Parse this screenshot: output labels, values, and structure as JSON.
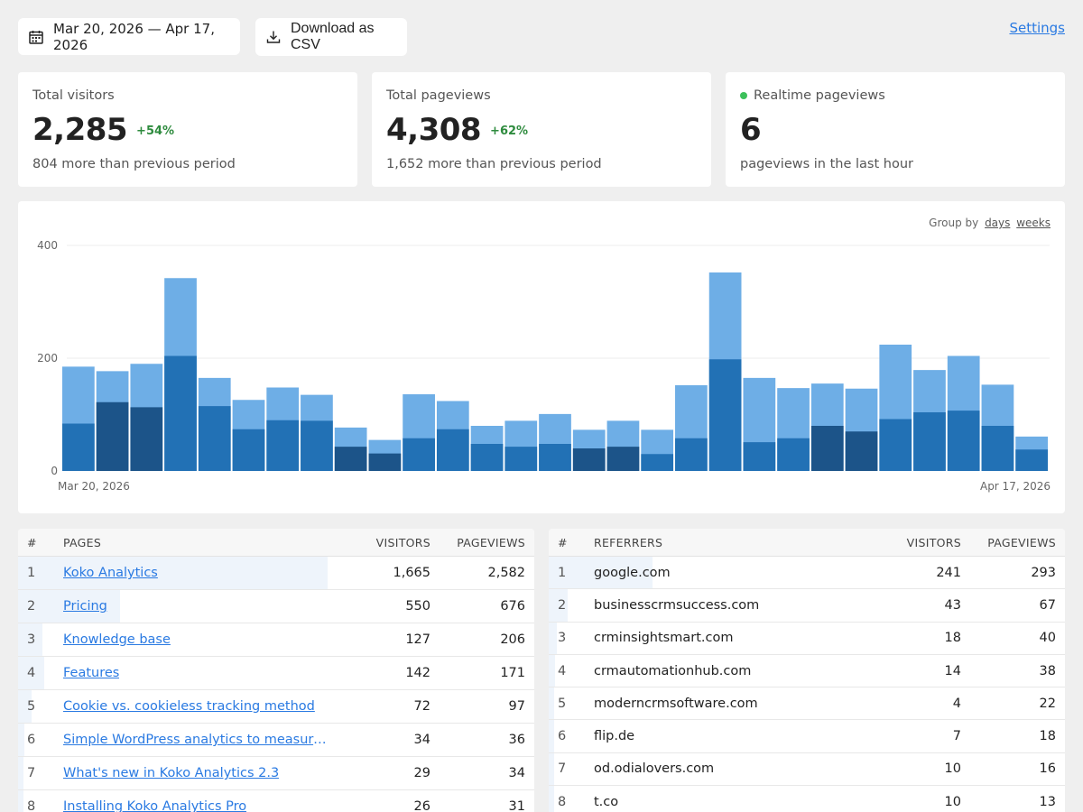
{
  "toolbar": {
    "date_range": "Mar 20, 2026 — Apr 17, 2026",
    "download_label": "Download as CSV",
    "settings_label": "Settings",
    "calendar_icon": "calendar-icon",
    "download_icon": "download-icon"
  },
  "cards": {
    "visitors": {
      "label": "Total visitors",
      "value": "2,285",
      "change": "+54%",
      "sub": "804 more than previous period"
    },
    "pageviews": {
      "label": "Total pageviews",
      "value": "4,308",
      "change": "+62%",
      "sub": "1,652 more than previous period"
    },
    "realtime": {
      "label": "Realtime pageviews",
      "value": "6",
      "sub": "pageviews in the last hour"
    }
  },
  "chart": {
    "group_by_label": "Group by",
    "group_days": "days",
    "group_weeks": "weeks",
    "x_start": "Mar 20, 2026",
    "x_end": "Apr 17, 2026"
  },
  "chart_data": {
    "type": "bar",
    "ylim": [
      0,
      400
    ],
    "yticks": [
      0,
      200,
      400
    ],
    "x_start": "Mar 20, 2026",
    "x_end": "Apr 17, 2026",
    "colors": {
      "pageviews": "#6eaee6",
      "visitors": "#2271b5",
      "visitors_weekend": "#1c5489"
    },
    "weekend_days": [
      1,
      2,
      8,
      9,
      15,
      16,
      22,
      23
    ],
    "series": [
      {
        "values": [
          185,
          177,
          190,
          342,
          165,
          126,
          148,
          135,
          77,
          55,
          136,
          124,
          80,
          89,
          101,
          73,
          89,
          73,
          152,
          352,
          165,
          147,
          155,
          146,
          224,
          179,
          204,
          153,
          61
        ]
      },
      {
        "values": [
          84,
          122,
          113,
          204,
          115,
          74,
          90,
          89,
          43,
          31,
          58,
          74,
          48,
          43,
          48,
          40,
          43,
          30,
          58,
          198,
          51,
          58,
          80,
          70,
          92,
          104,
          107,
          80,
          38
        ]
      }
    ]
  },
  "pages": {
    "headers": {
      "num": "#",
      "name": "PAGES",
      "visitors": "VISITORS",
      "pageviews": "PAGEVIEWS"
    },
    "rows": [
      {
        "num": "1",
        "name": "Koko Analytics",
        "visitors": "1,665",
        "pageviews": "2,582",
        "share": 1.0
      },
      {
        "num": "2",
        "name": "Pricing",
        "visitors": "550",
        "pageviews": "676",
        "share": 0.33
      },
      {
        "num": "3",
        "name": "Knowledge base",
        "visitors": "127",
        "pageviews": "206",
        "share": 0.08
      },
      {
        "num": "4",
        "name": "Features",
        "visitors": "142",
        "pageviews": "171",
        "share": 0.085
      },
      {
        "num": "5",
        "name": "Cookie vs. cookieless tracking method",
        "visitors": "72",
        "pageviews": "97",
        "share": 0.043
      },
      {
        "num": "6",
        "name": "Simple WordPress analytics to measure sit…",
        "visitors": "34",
        "pageviews": "36",
        "share": 0.02
      },
      {
        "num": "7",
        "name": "What's new in Koko Analytics 2.3",
        "visitors": "29",
        "pageviews": "34",
        "share": 0.017
      },
      {
        "num": "8",
        "name": "Installing Koko Analytics Pro",
        "visitors": "26",
        "pageviews": "31",
        "share": 0.016
      }
    ]
  },
  "referrers": {
    "headers": {
      "num": "#",
      "name": "REFERRERS",
      "visitors": "VISITORS",
      "pageviews": "PAGEVIEWS"
    },
    "rows": [
      {
        "num": "1",
        "name": "google.com",
        "visitors": "241",
        "pageviews": "293",
        "share": 1.0
      },
      {
        "num": "2",
        "name": "businesscrmsuccess.com",
        "visitors": "43",
        "pageviews": "67",
        "share": 0.18
      },
      {
        "num": "3",
        "name": "crminsightsmart.com",
        "visitors": "18",
        "pageviews": "40",
        "share": 0.075
      },
      {
        "num": "4",
        "name": "crmautomationhub.com",
        "visitors": "14",
        "pageviews": "38",
        "share": 0.058
      },
      {
        "num": "5",
        "name": "moderncrmsoftware.com",
        "visitors": "4",
        "pageviews": "22",
        "share": 0.017
      },
      {
        "num": "6",
        "name": "flip.de",
        "visitors": "7",
        "pageviews": "18",
        "share": 0.029
      },
      {
        "num": "7",
        "name": "od.odialovers.com",
        "visitors": "10",
        "pageviews": "16",
        "share": 0.041
      },
      {
        "num": "8",
        "name": "t.co",
        "visitors": "10",
        "pageviews": "13",
        "share": 0.041
      }
    ]
  }
}
